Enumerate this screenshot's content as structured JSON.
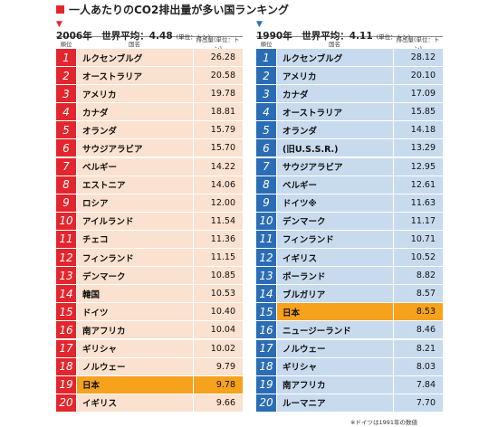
{
  "title": "一人あたりのCO2排出量が多い国ランキング",
  "tables": [
    {
      "heading": "2006年　世界平均：4.48",
      "unit": "(単位：トン)",
      "columns": [
        "順位",
        "国名",
        "排出量(単位：トン)"
      ],
      "accent": "#e3262d",
      "row_color": "#fbe1cf",
      "highlight_rank": 19,
      "highlight_color": "#f6a21c",
      "rows": [
        [
          1,
          "ルクセンブルグ",
          "26.28"
        ],
        [
          2,
          "オーストラリア",
          "20.58"
        ],
        [
          3,
          "アメリカ",
          "19.78"
        ],
        [
          4,
          "カナダ",
          "18.81"
        ],
        [
          5,
          "オランダ",
          "15.79"
        ],
        [
          6,
          "サウジアラビア",
          "15.70"
        ],
        [
          7,
          "ベルギー",
          "14.22"
        ],
        [
          8,
          "エストニア",
          "14.06"
        ],
        [
          9,
          "ロシア",
          "12.00"
        ],
        [
          10,
          "アイルランド",
          "11.54"
        ],
        [
          11,
          "チェコ",
          "11.36"
        ],
        [
          12,
          "フィンランド",
          "11.15"
        ],
        [
          13,
          "デンマーク",
          "10.85"
        ],
        [
          14,
          "韓国",
          "10.53"
        ],
        [
          15,
          "ドイツ",
          "10.40"
        ],
        [
          16,
          "南アフリカ",
          "10.04"
        ],
        [
          17,
          "ギリシャ",
          "10.02"
        ],
        [
          18,
          "ノルウェー",
          "9.79"
        ],
        [
          19,
          "日本",
          "9.78"
        ],
        [
          20,
          "イギリス",
          "9.66"
        ]
      ]
    },
    {
      "heading": "1990年　世界平均：4.11",
      "unit": "(単位：トン)",
      "columns": [
        "順位",
        "国名",
        "排出量(単位：トン)"
      ],
      "accent": "#2b6db5",
      "row_color": "#c8daee",
      "highlight_rank": 15,
      "highlight_color": "#f6a21c",
      "rows": [
        [
          1,
          "ルクセンブルグ",
          "28.12"
        ],
        [
          2,
          "アメリカ",
          "20.10"
        ],
        [
          3,
          "カナダ",
          "17.09"
        ],
        [
          4,
          "オーストラリア",
          "15.85"
        ],
        [
          5,
          "オランダ",
          "14.18"
        ],
        [
          6,
          "(旧U.S.S.R.)",
          "13.29"
        ],
        [
          7,
          "サウジアラビア",
          "12.95"
        ],
        [
          8,
          "ベルギー",
          "12.61"
        ],
        [
          9,
          "ドイツ※",
          "11.63"
        ],
        [
          10,
          "デンマーク",
          "11.17"
        ],
        [
          11,
          "フィンランド",
          "10.71"
        ],
        [
          12,
          "イギリス",
          "10.52"
        ],
        [
          13,
          "ポーランド",
          "8.82"
        ],
        [
          14,
          "ブルガリア",
          "8.57"
        ],
        [
          15,
          "日本",
          "8.53"
        ],
        [
          16,
          "ニュージーランド",
          "8.46"
        ],
        [
          17,
          "ノルウェー",
          "8.21"
        ],
        [
          18,
          "ギリシャ",
          "8.03"
        ],
        [
          19,
          "南アフリカ",
          "7.84"
        ],
        [
          20,
          "ルーマニア",
          "7.70"
        ]
      ]
    }
  ],
  "footnote": "※ドイツは1991年の数値"
}
